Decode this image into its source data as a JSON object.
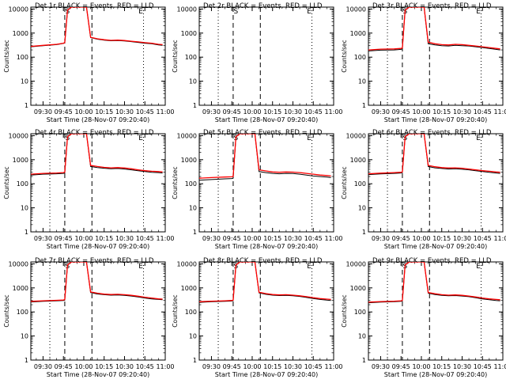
{
  "chart_data": {
    "type": "line",
    "ylabel": "Counts/sec",
    "xlabel": "Start Time (28-Nov-07 09:20:40)",
    "yscale": "log",
    "ylim": [
      1,
      12000
    ],
    "xlim": [
      "09:21",
      "11:00"
    ],
    "y_tick_labels": [
      "1",
      "10",
      "100",
      "1000",
      "10000"
    ],
    "x_tick_labels": [
      "09:30",
      "09:45",
      "10:00",
      "10:15",
      "10:30",
      "10:45",
      "11:00"
    ],
    "grid": false,
    "colors": {
      "events": "#000000",
      "lld": "#ff0000"
    },
    "dotted_lines": [
      "09:35",
      "10:44"
    ],
    "dashed_lines": [
      "09:46",
      "10:06"
    ],
    "flare_markers": [
      {
        "time": "09:48",
        "symbol": "S"
      },
      {
        "time": "10:42",
        "symbol": "E"
      }
    ],
    "panels": [
      {
        "title": "Det 1r BLACK = Events, RED = LLD",
        "series": [
          {
            "legend": "BLACK",
            "x": [
              "09:21",
              "09:30",
              "09:40",
              "09:45",
              "09:46",
              "09:48",
              "09:51",
              "09:55",
              "10:00",
              "10:02",
              "10:05",
              "10:10",
              "10:15",
              "10:20",
              "10:25",
              "10:30",
              "10:35",
              "10:40",
              "10:45",
              "10:50",
              "10:55",
              "10:58"
            ],
            "y": [
              270,
              300,
              330,
              370,
              390,
              9000,
              12000,
              12000,
              12000,
              12000,
              650,
              560,
              510,
              480,
              490,
              470,
              440,
              410,
              380,
              360,
              320,
              310
            ]
          },
          {
            "legend": "RED",
            "x": [
              "09:21",
              "09:30",
              "09:40",
              "09:45",
              "09:46",
              "09:48",
              "09:51",
              "09:55",
              "10:00",
              "10:02",
              "10:05",
              "10:10",
              "10:15",
              "10:20",
              "10:25",
              "10:30",
              "10:35",
              "10:40",
              "10:45",
              "10:50",
              "10:55",
              "10:58"
            ],
            "y": [
              280,
              310,
              340,
              380,
              400,
              9000,
              12000,
              12000,
              12000,
              12000,
              670,
              580,
              530,
              500,
              510,
              490,
              460,
              430,
              400,
              380,
              340,
              330
            ]
          }
        ]
      },
      {
        "title": "Det 2r BLACK = Events, RED = LLD",
        "series": [],
        "symbols": [
          "S"
        ]
      },
      {
        "title": "Det 3r BLACK = Events, RED = LLD",
        "series": [
          {
            "legend": "BLACK",
            "x": [
              "09:21",
              "09:30",
              "09:40",
              "09:45",
              "09:46",
              "09:48",
              "09:51",
              "09:55",
              "10:00",
              "10:02",
              "10:05",
              "10:10",
              "10:15",
              "10:20",
              "10:25",
              "10:30",
              "10:35",
              "10:40",
              "10:45",
              "10:50",
              "10:55",
              "10:58"
            ],
            "y": [
              180,
              195,
              200,
              210,
              220,
              9000,
              12000,
              12000,
              12000,
              12000,
              360,
              320,
              300,
              290,
              310,
              300,
              290,
              270,
              250,
              230,
              210,
              200
            ]
          },
          {
            "legend": "RED",
            "x": [
              "09:21",
              "09:30",
              "09:40",
              "09:45",
              "09:46",
              "09:48",
              "09:51",
              "09:55",
              "10:00",
              "10:02",
              "10:05",
              "10:10",
              "10:15",
              "10:20",
              "10:25",
              "10:30",
              "10:35",
              "10:40",
              "10:45",
              "10:50",
              "10:55",
              "10:58"
            ],
            "y": [
              200,
              215,
              220,
              230,
              240,
              9000,
              12000,
              12000,
              12000,
              12000,
              420,
              360,
              330,
              320,
              340,
              330,
              310,
              290,
              270,
              250,
              230,
              220
            ]
          }
        ]
      },
      {
        "title": "Det 4r BLACK = Events, RED = LLD",
        "series": [
          {
            "legend": "BLACK",
            "x": [
              "09:21",
              "09:30",
              "09:40",
              "09:45",
              "09:46",
              "09:48",
              "09:51",
              "09:55",
              "10:00",
              "10:02",
              "10:05",
              "10:10",
              "10:15",
              "10:20",
              "10:25",
              "10:30",
              "10:35",
              "10:40",
              "10:45",
              "10:50",
              "10:55",
              "10:58"
            ],
            "y": [
              230,
              250,
              260,
              270,
              280,
              9000,
              12000,
              12000,
              12000,
              12000,
              520,
              470,
              440,
              420,
              430,
              410,
              380,
              350,
              320,
              300,
              290,
              280
            ]
          },
          {
            "legend": "RED",
            "x": [
              "09:21",
              "09:30",
              "09:40",
              "09:45",
              "09:46",
              "09:48",
              "09:51",
              "09:55",
              "10:00",
              "10:02",
              "10:05",
              "10:10",
              "10:15",
              "10:20",
              "10:25",
              "10:30",
              "10:35",
              "10:40",
              "10:45",
              "10:50",
              "10:55",
              "10:58"
            ],
            "y": [
              250,
              270,
              280,
              290,
              300,
              9000,
              12000,
              12000,
              12000,
              12000,
              580,
              520,
              480,
              460,
              470,
              450,
              420,
              380,
              350,
              330,
              320,
              310
            ]
          }
        ]
      },
      {
        "title": "Det 5r BLACK = Events, RED = LLD",
        "series": [
          {
            "legend": "BLACK",
            "x": [
              "09:21",
              "09:30",
              "09:40",
              "09:45",
              "09:46",
              "09:48",
              "09:51",
              "09:55",
              "10:00",
              "10:02",
              "10:05",
              "10:10",
              "10:15",
              "10:20",
              "10:25",
              "10:30",
              "10:35",
              "10:40",
              "10:45",
              "10:50",
              "10:55",
              "10:58"
            ],
            "y": [
              140,
              150,
              160,
              165,
              170,
              9000,
              12000,
              12000,
              12000,
              12000,
              320,
              290,
              270,
              260,
              270,
              265,
              250,
              230,
              210,
              200,
              190,
              180
            ]
          },
          {
            "legend": "RED",
            "x": [
              "09:21",
              "09:30",
              "09:40",
              "09:45",
              "09:46",
              "09:48",
              "09:51",
              "09:55",
              "10:00",
              "10:02",
              "10:05",
              "10:10",
              "10:15",
              "10:20",
              "10:25",
              "10:30",
              "10:35",
              "10:40",
              "10:45",
              "10:50",
              "10:55",
              "10:58"
            ],
            "y": [
              170,
              180,
              190,
              195,
              200,
              9000,
              12000,
              12000,
              12000,
              12000,
              380,
              340,
              310,
              300,
              310,
              305,
              290,
              270,
              250,
              230,
              220,
              210
            ]
          }
        ]
      },
      {
        "title": "Det 6r BLACK = Events, RED = LLD",
        "series": [
          {
            "legend": "BLACK",
            "x": [
              "09:21",
              "09:30",
              "09:40",
              "09:45",
              "09:46",
              "09:48",
              "09:51",
              "09:55",
              "10:00",
              "10:02",
              "10:05",
              "10:10",
              "10:15",
              "10:20",
              "10:25",
              "10:30",
              "10:35",
              "10:40",
              "10:45",
              "10:50",
              "10:55",
              "10:58"
            ],
            "y": [
              240,
              255,
              270,
              280,
              290,
              9000,
              12000,
              12000,
              12000,
              12000,
              520,
              460,
              430,
              410,
              420,
              400,
              380,
              350,
              320,
              300,
              280,
              270
            ]
          },
          {
            "legend": "RED",
            "x": [
              "09:21",
              "09:30",
              "09:40",
              "09:45",
              "09:46",
              "09:48",
              "09:51",
              "09:55",
              "10:00",
              "10:02",
              "10:05",
              "10:10",
              "10:15",
              "10:20",
              "10:25",
              "10:30",
              "10:35",
              "10:40",
              "10:45",
              "10:50",
              "10:55",
              "10:58"
            ],
            "y": [
              260,
              275,
              290,
              300,
              310,
              9000,
              12000,
              12000,
              12000,
              12000,
              580,
              510,
              470,
              450,
              460,
              440,
              410,
              380,
              350,
              330,
              310,
              300
            ]
          }
        ]
      },
      {
        "title": "Det 7r BLACK = Events, RED = LLD",
        "series": [
          {
            "legend": "BLACK",
            "x": [
              "09:21",
              "09:30",
              "09:40",
              "09:45",
              "09:46",
              "09:48",
              "09:51",
              "09:55",
              "10:00",
              "10:02",
              "10:05",
              "10:10",
              "10:15",
              "10:20",
              "10:25",
              "10:30",
              "10:35",
              "10:40",
              "10:45",
              "10:50",
              "10:55",
              "10:58"
            ],
            "y": [
              260,
              275,
              290,
              300,
              310,
              9000,
              12000,
              12000,
              12000,
              12000,
              640,
              560,
              520,
              500,
              510,
              490,
              460,
              420,
              380,
              350,
              330,
              320
            ]
          },
          {
            "legend": "RED",
            "x": [
              "09:21",
              "09:30",
              "09:40",
              "09:45",
              "09:46",
              "09:48",
              "09:51",
              "09:55",
              "10:00",
              "10:02",
              "10:05",
              "10:10",
              "10:15",
              "10:20",
              "10:25",
              "10:30",
              "10:35",
              "10:40",
              "10:45",
              "10:50",
              "10:55",
              "10:58"
            ],
            "y": [
              275,
              290,
              305,
              315,
              325,
              9000,
              12000,
              12000,
              12000,
              12000,
              680,
              600,
              550,
              530,
              540,
              520,
              490,
              450,
              410,
              380,
              350,
              340
            ]
          }
        ]
      },
      {
        "title": "Det 8r BLACK = Events, RED = LLD",
        "series": [
          {
            "legend": "BLACK",
            "x": [
              "09:21",
              "09:30",
              "09:40",
              "09:45",
              "09:46",
              "09:48",
              "09:51",
              "09:55",
              "10:00",
              "10:02",
              "10:05",
              "10:10",
              "10:15",
              "10:20",
              "10:25",
              "10:30",
              "10:35",
              "10:40",
              "10:45",
              "10:50",
              "10:55",
              "10:58"
            ],
            "y": [
              250,
              265,
              275,
              285,
              295,
              9000,
              12000,
              12000,
              12000,
              12000,
              620,
              540,
              500,
              480,
              490,
              470,
              440,
              400,
              360,
              330,
              310,
              300
            ]
          },
          {
            "legend": "RED",
            "x": [
              "09:21",
              "09:30",
              "09:40",
              "09:45",
              "09:46",
              "09:48",
              "09:51",
              "09:55",
              "10:00",
              "10:02",
              "10:05",
              "10:10",
              "10:15",
              "10:20",
              "10:25",
              "10:30",
              "10:35",
              "10:40",
              "10:45",
              "10:50",
              "10:55",
              "10:58"
            ],
            "y": [
              265,
              280,
              290,
              300,
              310,
              9000,
              12000,
              12000,
              12000,
              12000,
              660,
              580,
              530,
              510,
              520,
              500,
              470,
              430,
              390,
              360,
              340,
              330
            ]
          }
        ]
      },
      {
        "title": "Det 9r BLACK = Events, RED = LLD",
        "series": [
          {
            "legend": "BLACK",
            "x": [
              "09:21",
              "09:30",
              "09:40",
              "09:45",
              "09:46",
              "09:48",
              "09:51",
              "09:55",
              "10:00",
              "10:02",
              "10:05",
              "10:10",
              "10:15",
              "10:20",
              "10:25",
              "10:30",
              "10:35",
              "10:40",
              "10:45",
              "10:50",
              "10:55",
              "10:58"
            ],
            "y": [
              240,
              255,
              265,
              275,
              285,
              9000,
              12000,
              12000,
              12000,
              12000,
              600,
              530,
              490,
              470,
              480,
              460,
              430,
              390,
              350,
              320,
              300,
              290
            ]
          },
          {
            "legend": "RED",
            "x": [
              "09:21",
              "09:30",
              "09:40",
              "09:45",
              "09:46",
              "09:48",
              "09:51",
              "09:55",
              "10:00",
              "10:02",
              "10:05",
              "10:10",
              "10:15",
              "10:20",
              "10:25",
              "10:30",
              "10:35",
              "10:40",
              "10:45",
              "10:50",
              "10:55",
              "10:58"
            ],
            "y": [
              255,
              270,
              280,
              290,
              300,
              9000,
              12000,
              12000,
              12000,
              12000,
              640,
              570,
              520,
              500,
              510,
              490,
              460,
              420,
              380,
              350,
              330,
              320
            ]
          }
        ]
      }
    ]
  }
}
